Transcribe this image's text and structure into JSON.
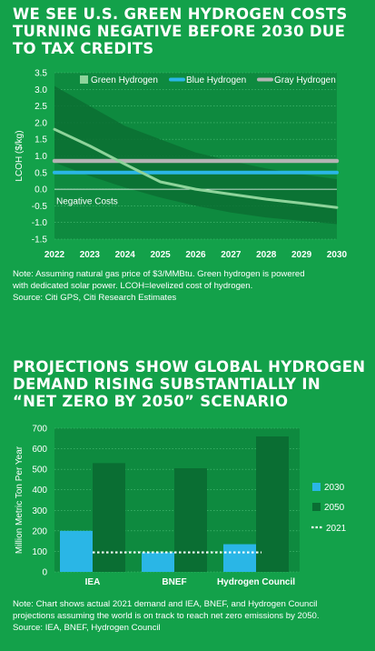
{
  "top": {
    "title_lines": [
      "WE SEE U.S. GREEN HYDROGEN COSTS",
      "TURNING NEGATIVE BEFORE 2030 DUE",
      "TO TAX CREDITS"
    ],
    "note_lines": [
      "Note: Assuming natural gas price of $3/MMBtu. Green hydrogen is powered",
      "with dedicated solar power. LCOH=levelized cost of hydrogen."
    ],
    "source": "Source: Citi GPS, Citi Research Estimates"
  },
  "bottom": {
    "title_lines": [
      "PROJECTIONS SHOW GLOBAL HYDROGEN",
      "DEMAND RISING SUBSTANTIALLY IN",
      "“NET ZERO BY 2050” SCENARIO"
    ],
    "note_lines": [
      "Note: Chart shows actual 2021 demand and IEA, BNEF, and Hydrogen Council",
      "projections assuming the world is on track to reach net zero emissions by 2050."
    ],
    "source": "Source: IEA, BNEF, Hydrogen Council"
  },
  "colors": {
    "background": "#13a14a",
    "plot_background": "#0e8a3f",
    "green_hydrogen": "#8ed49b",
    "green_band": "#0a6e33",
    "blue_hydrogen": "#2ab6e6",
    "gray_hydrogen": "#b4b4b4",
    "bar_2030": "#2ab6e6",
    "bar_2050": "#0a6e33",
    "line_2021": "#ffffff"
  },
  "chart_data": [
    {
      "type": "line",
      "ylabel": "LCOH ($/kg)",
      "ylim": [
        -1.5,
        3.5
      ],
      "yticks": [
        "3.5",
        "3.0",
        "2.5",
        "2.0",
        "1.5",
        "1.0",
        "0.5",
        "0.0",
        "-0.5",
        "-1.0",
        "-1.5"
      ],
      "x": [
        "2022",
        "2023",
        "2024",
        "2025",
        "2026",
        "2027",
        "2028",
        "2029",
        "2030"
      ],
      "grid": true,
      "legend_position": "top",
      "annotation": "Negative Costs",
      "series": [
        {
          "name": "Green Hydrogen",
          "values": [
            1.8,
            1.3,
            0.75,
            0.22,
            0.0,
            -0.15,
            -0.3,
            -0.42,
            -0.55
          ]
        },
        {
          "name": "Blue Hydrogen",
          "values": [
            0.5,
            0.5,
            0.5,
            0.5,
            0.5,
            0.5,
            0.5,
            0.5,
            0.5
          ]
        },
        {
          "name": "Gray Hydrogen",
          "values": [
            0.85,
            0.85,
            0.85,
            0.85,
            0.85,
            0.85,
            0.85,
            0.85,
            0.85
          ]
        }
      ],
      "green_range": {
        "high": [
          3.1,
          2.5,
          1.9,
          1.5,
          1.1,
          0.85,
          0.62,
          0.45,
          0.3
        ],
        "low": [
          0.8,
          0.4,
          0.05,
          -0.25,
          -0.5,
          -0.7,
          -0.85,
          -0.95,
          -1.05
        ]
      }
    },
    {
      "type": "bar",
      "ylabel": "Million Metric Ton Per Year",
      "ylim": [
        0,
        700
      ],
      "yticks": [
        "700",
        "600",
        "500",
        "400",
        "300",
        "200",
        "100",
        "0"
      ],
      "categories": [
        "IEA",
        "BNEF",
        "Hydrogen Council"
      ],
      "series": [
        {
          "name": "2030",
          "values": [
            200,
            95,
            135
          ]
        },
        {
          "name": "2050",
          "values": [
            530,
            505,
            660
          ]
        }
      ],
      "reference_line": {
        "name": "2021",
        "value": 95
      },
      "legend_position": "right"
    }
  ]
}
